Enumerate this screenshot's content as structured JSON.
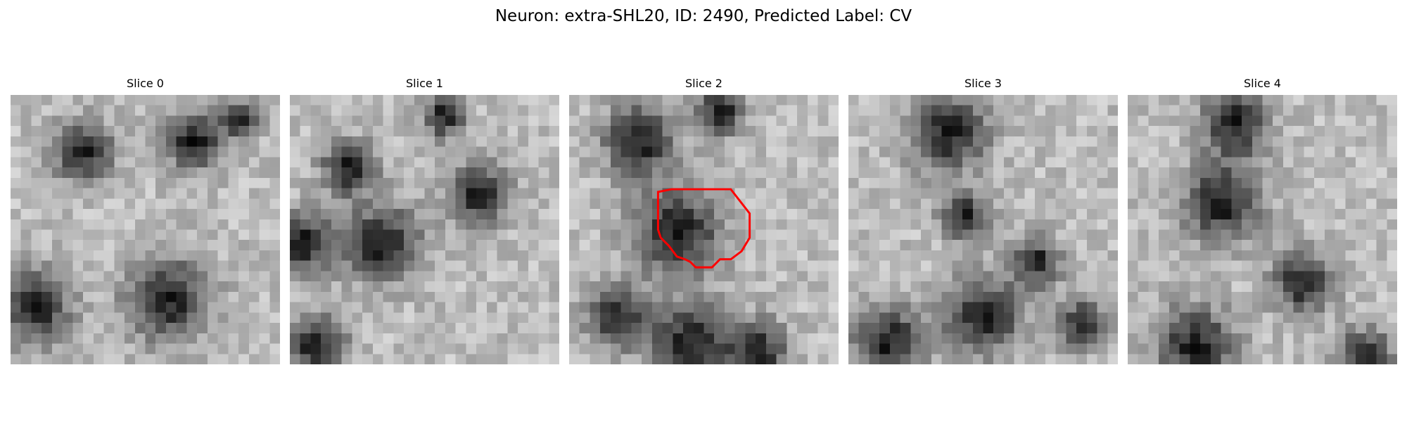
{
  "figure": {
    "title": "Neuron: extra-SHL20, ID: 2490, Predicted Label: CV",
    "outline_color": "#ff0000"
  },
  "panels": [
    {
      "title": "Slice 0",
      "dark_regions": [
        [
          0.68,
          0.17,
          0.1
        ],
        [
          0.27,
          0.21,
          0.1
        ],
        [
          0.09,
          0.79,
          0.12
        ],
        [
          0.58,
          0.76,
          0.14
        ],
        [
          0.85,
          0.09,
          0.06
        ]
      ],
      "seed": 11
    },
    {
      "title": "Slice 1",
      "dark_regions": [
        [
          0.57,
          0.08,
          0.07
        ],
        [
          0.22,
          0.27,
          0.09
        ],
        [
          0.34,
          0.55,
          0.13
        ],
        [
          0.05,
          0.55,
          0.1
        ],
        [
          0.7,
          0.37,
          0.1
        ],
        [
          0.1,
          0.93,
          0.1
        ]
      ],
      "seed": 23
    },
    {
      "title": "Slice 2",
      "dark_regions": [
        [
          0.26,
          0.17,
          0.12
        ],
        [
          0.56,
          0.06,
          0.08
        ],
        [
          0.4,
          0.51,
          0.15
        ],
        [
          0.18,
          0.83,
          0.1
        ],
        [
          0.45,
          0.92,
          0.13
        ],
        [
          0.7,
          0.95,
          0.1
        ]
      ],
      "seed": 37,
      "outline": [
        [
          0.33,
          0.36
        ],
        [
          0.38,
          0.35
        ],
        [
          0.6,
          0.35
        ],
        [
          0.67,
          0.44
        ],
        [
          0.67,
          0.53
        ],
        [
          0.64,
          0.58
        ],
        [
          0.6,
          0.61
        ],
        [
          0.56,
          0.61
        ],
        [
          0.53,
          0.64
        ],
        [
          0.47,
          0.64
        ],
        [
          0.45,
          0.62
        ],
        [
          0.43,
          0.61
        ],
        [
          0.4,
          0.6
        ],
        [
          0.37,
          0.56
        ],
        [
          0.34,
          0.53
        ],
        [
          0.33,
          0.5
        ]
      ]
    },
    {
      "title": "Slice 3",
      "dark_regions": [
        [
          0.37,
          0.14,
          0.13
        ],
        [
          0.43,
          0.45,
          0.08
        ],
        [
          0.7,
          0.62,
          0.08
        ],
        [
          0.15,
          0.92,
          0.12
        ],
        [
          0.5,
          0.82,
          0.13
        ],
        [
          0.87,
          0.85,
          0.08
        ]
      ],
      "seed": 51
    },
    {
      "title": "Slice 4",
      "dark_regions": [
        [
          0.4,
          0.11,
          0.11
        ],
        [
          0.35,
          0.4,
          0.13
        ],
        [
          0.65,
          0.7,
          0.1
        ],
        [
          0.25,
          0.93,
          0.13
        ],
        [
          0.88,
          0.97,
          0.09
        ]
      ],
      "seed": 67
    }
  ]
}
